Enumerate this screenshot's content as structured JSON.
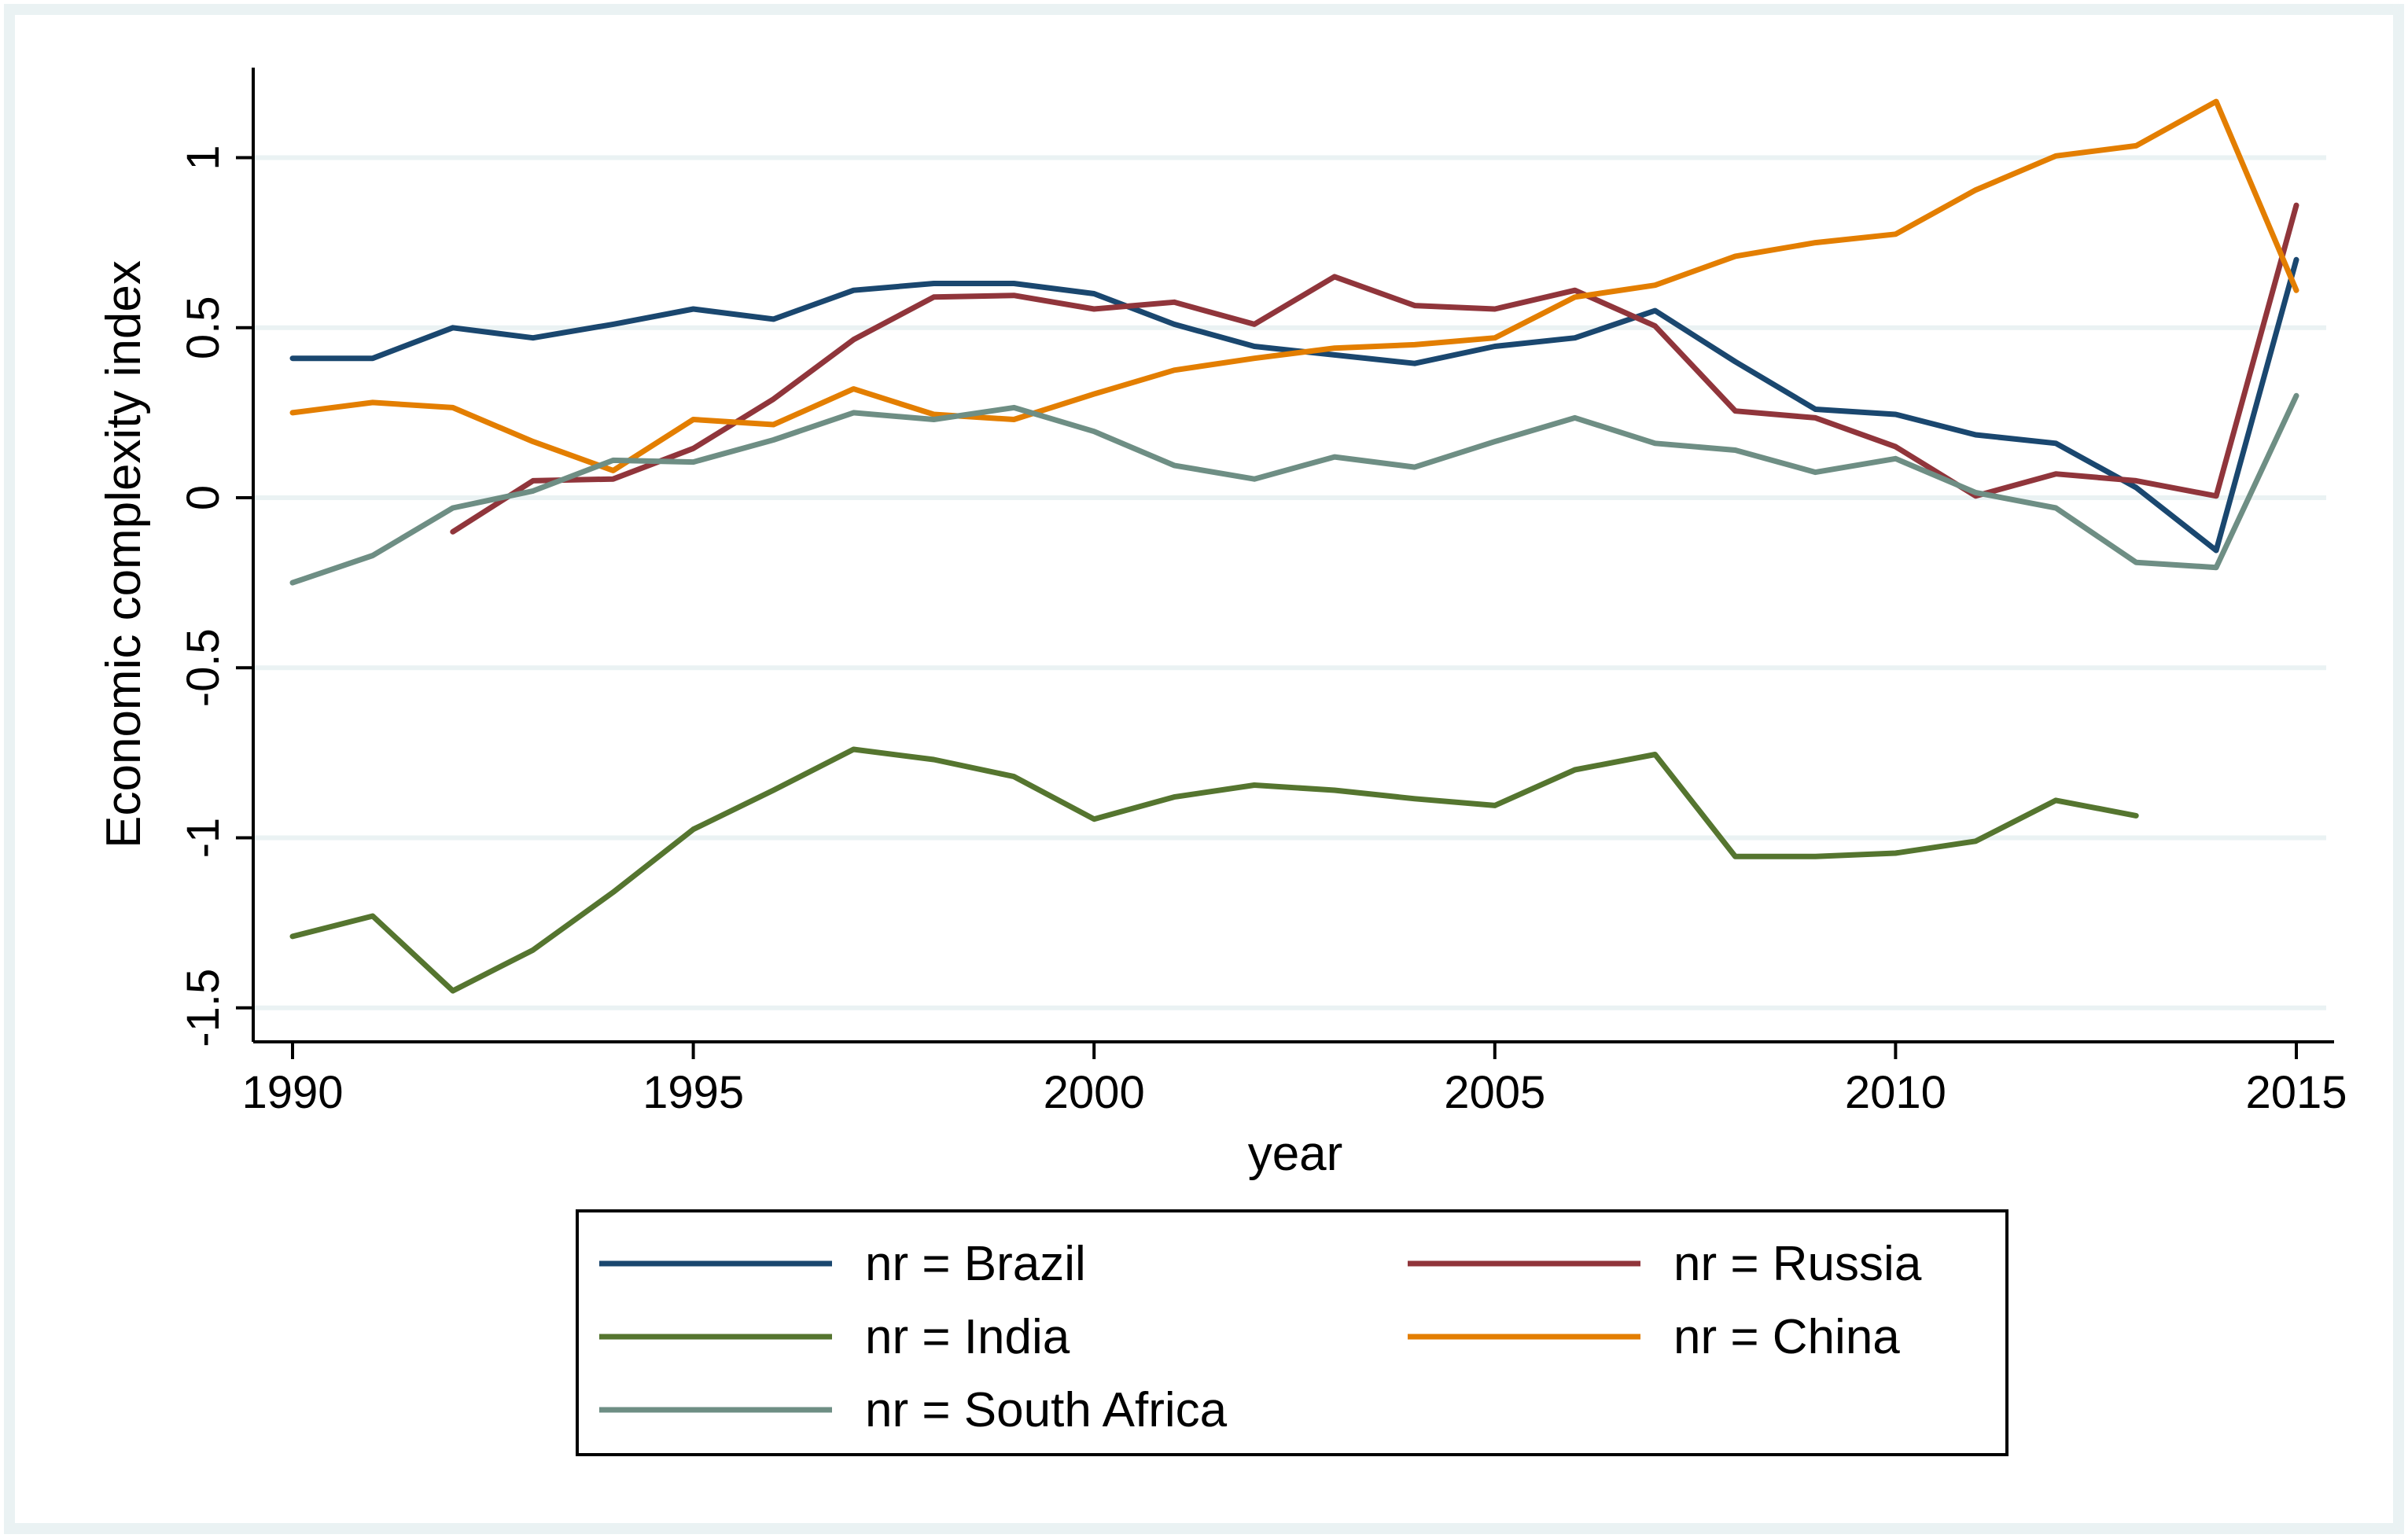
{
  "chart_data": {
    "type": "line",
    "title": "",
    "xlabel": "year",
    "ylabel": "Economic complexity index",
    "xlim": [
      1990,
      2015
    ],
    "ylim": [
      -1.6,
      1.25
    ],
    "xticks": [
      1990,
      1995,
      2000,
      2005,
      2010,
      2015
    ],
    "yticks": [
      {
        "value": 1,
        "label": "1"
      },
      {
        "value": 0.5,
        "label": "0.5"
      },
      {
        "value": 0,
        "label": "0"
      },
      {
        "value": -0.5,
        "label": "-0.5"
      },
      {
        "value": -1,
        "label": "-1"
      },
      {
        "value": -1.5,
        "label": "-1.5"
      }
    ],
    "grid": true,
    "legend_position": "bottom",
    "series": [
      {
        "name": "nr = Brazil",
        "color": "#1a476f",
        "x": [
          1990,
          1991,
          1992,
          1993,
          1994,
          1995,
          1996,
          1997,
          1998,
          1999,
          2000,
          2001,
          2002,
          2003,
          2004,
          2005,
          2006,
          2007,
          2008,
          2009,
          2010,
          2011,
          2012,
          2013,
          2014,
          2015
        ],
        "values": [
          0.41,
          0.41,
          0.5,
          0.47,
          0.51,
          0.555,
          0.525,
          0.61,
          0.63,
          0.63,
          0.6,
          0.51,
          0.445,
          0.42,
          0.395,
          0.445,
          0.47,
          0.55,
          0.4,
          0.26,
          0.245,
          0.185,
          0.16,
          0.03,
          -0.155,
          0.7
        ]
      },
      {
        "name": "nr = Russia",
        "color": "#90353b",
        "x": [
          1992,
          1993,
          1994,
          1995,
          1996,
          1997,
          1998,
          1999,
          2000,
          2001,
          2002,
          2003,
          2004,
          2005,
          2006,
          2007,
          2008,
          2009,
          2010,
          2011,
          2012,
          2013,
          2014,
          2015
        ],
        "values": [
          -0.1,
          0.05,
          0.055,
          0.145,
          0.29,
          0.465,
          0.59,
          0.595,
          0.555,
          0.575,
          0.51,
          0.65,
          0.565,
          0.555,
          0.61,
          0.505,
          0.255,
          0.235,
          0.15,
          0.005,
          0.07,
          0.05,
          0.005,
          0.86
        ]
      },
      {
        "name": "nr = India",
        "color": "#55752f",
        "x": [
          1990,
          1991,
          1992,
          1993,
          1994,
          1995,
          1996,
          1997,
          1998,
          1999,
          2000,
          2001,
          2002,
          2003,
          2004,
          2005,
          2006,
          2007,
          2008,
          2009,
          2010,
          2011,
          2012,
          2013
        ],
        "values": [
          -1.29,
          -1.23,
          -1.45,
          -1.33,
          -1.16,
          -0.975,
          -0.86,
          -0.74,
          -0.77,
          -0.82,
          -0.945,
          -0.88,
          -0.845,
          -0.86,
          -0.885,
          -0.905,
          -0.8,
          -0.755,
          -1.055,
          -1.055,
          -1.045,
          -1.01,
          -0.89,
          -0.935
        ]
      },
      {
        "name": "nr = China",
        "color": "#e37e00",
        "x": [
          1990,
          1991,
          1992,
          1993,
          1994,
          1995,
          1996,
          1997,
          1998,
          1999,
          2000,
          2001,
          2002,
          2003,
          2004,
          2005,
          2006,
          2007,
          2008,
          2009,
          2010,
          2011,
          2012,
          2013,
          2014,
          2015
        ],
        "values": [
          0.25,
          0.28,
          0.265,
          0.165,
          0.08,
          0.23,
          0.215,
          0.32,
          0.245,
          0.23,
          0.305,
          0.375,
          0.41,
          0.44,
          0.45,
          0.47,
          0.59,
          0.625,
          0.71,
          0.75,
          0.775,
          0.905,
          1.005,
          1.035,
          1.165,
          0.61
        ]
      },
      {
        "name": "nr = South Africa",
        "color": "#6e8e84",
        "x": [
          1990,
          1991,
          1992,
          1993,
          1994,
          1995,
          1996,
          1997,
          1998,
          1999,
          2000,
          2001,
          2002,
          2003,
          2004,
          2005,
          2006,
          2007,
          2008,
          2009,
          2010,
          2011,
          2012,
          2013,
          2014,
          2015
        ],
        "values": [
          -0.25,
          -0.17,
          -0.03,
          0.02,
          0.11,
          0.105,
          0.17,
          0.25,
          0.23,
          0.265,
          0.195,
          0.095,
          0.055,
          0.12,
          0.09,
          0.165,
          0.235,
          0.16,
          0.14,
          0.075,
          0.115,
          0.015,
          -0.03,
          -0.19,
          -0.205,
          0.3
        ]
      }
    ]
  }
}
